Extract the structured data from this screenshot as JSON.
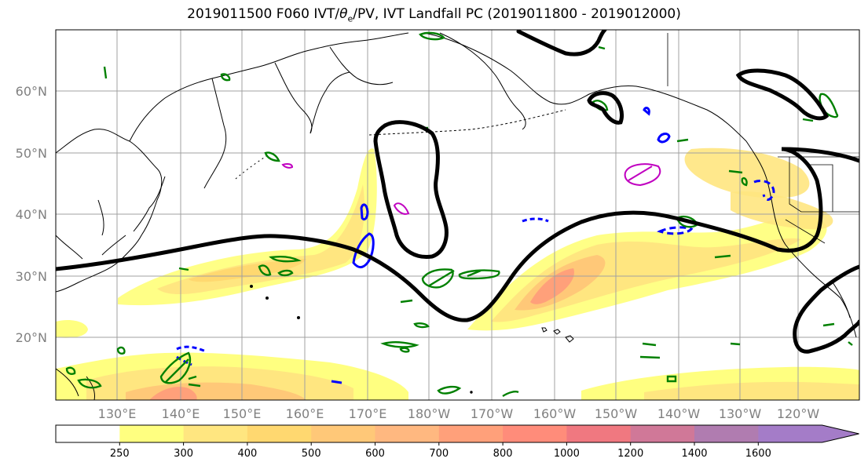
{
  "title": {
    "prefix": "2019011500 F060 IVT/",
    "theta": "θ",
    "sub": "e",
    "suffix": "/PV, IVT Landfall PC (2019011800 - 2019012000)"
  },
  "lat_labels": [
    "60°N",
    "50°N",
    "40°N",
    "30°N",
    "20°N"
  ],
  "lon_labels": [
    "130°E",
    "140°E",
    "150°E",
    "160°E",
    "170°E",
    "180°W",
    "170°W",
    "160°W",
    "150°W",
    "140°W",
    "130°W",
    "120°W"
  ],
  "colorbar": {
    "ticks": [
      "250",
      "300",
      "400",
      "500",
      "600",
      "700",
      "800",
      "1000",
      "1200",
      "1400",
      "1600"
    ],
    "colors": [
      "#ffffff",
      "#ffff80",
      "#ffe680",
      "#ffd870",
      "#ffc878",
      "#ffb880",
      "#ffa07a",
      "#ff8c7a",
      "#f07880",
      "#d07898",
      "#b07cb0",
      "#a47cc8"
    ]
  },
  "colors": {
    "ivt_fill": "#ffc060",
    "pc_contour": "#000000",
    "theta_e_contour": "#008000",
    "pv_contour": "#0000ff",
    "magenta_contour": "#c000c0",
    "coastline": "#000000",
    "grid": "#a0a0a0"
  }
}
